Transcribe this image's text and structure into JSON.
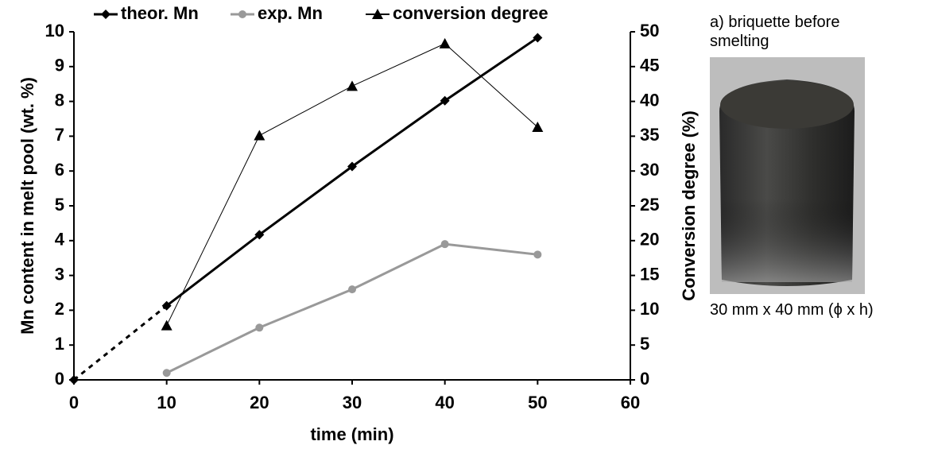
{
  "chart_data": {
    "type": "line",
    "x_label": "time (min)",
    "y_label": "Mn content in melt pool (wt. %)",
    "y2_label": "Conversion degree (%)",
    "x": [
      0,
      10,
      20,
      30,
      40,
      50
    ],
    "series": [
      {
        "name": "theor. Mn",
        "color": "#000000",
        "marker": "diamond",
        "width": 3,
        "dashed_first_segment": true,
        "values": [
          0,
          2.13,
          4.17,
          6.13,
          8.02,
          9.83
        ]
      },
      {
        "name": "exp. Mn",
        "color": "#999999",
        "marker": "circle",
        "width": 3,
        "values": [
          null,
          0.2,
          1.5,
          2.6,
          3.9,
          3.6
        ]
      },
      {
        "name": "conversion degree",
        "color": "#000000",
        "marker": "triangle",
        "width": 1,
        "axis": "y2",
        "values": [
          null,
          7.8,
          35.1,
          42.2,
          48.3,
          36.3
        ]
      }
    ],
    "xlim": [
      0,
      60
    ],
    "xticks": [
      0,
      10,
      20,
      30,
      40,
      50,
      60
    ],
    "ylim": [
      0,
      10
    ],
    "yticks": [
      0,
      1,
      2,
      3,
      4,
      5,
      6,
      7,
      8,
      9,
      10
    ],
    "y2lim": [
      0,
      50
    ],
    "y2ticks": [
      0,
      5,
      10,
      15,
      20,
      25,
      30,
      35,
      40,
      45,
      50
    ],
    "legend": "top",
    "photo_caption": "a) briquette before smelting",
    "photo_size": "30 mm x 40 mm (ϕ x h)"
  }
}
